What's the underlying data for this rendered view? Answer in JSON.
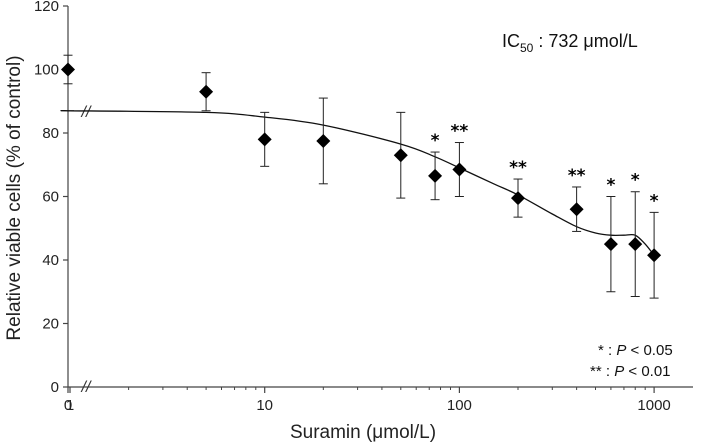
{
  "chart_data": {
    "type": "scatter",
    "title": "",
    "xlabel": "Suramin (μmol/L)",
    "ylabel": "Relative viable cells (% of control)",
    "x_scale": "log with broken axis at 0",
    "ylim": [
      0,
      120
    ],
    "xlim_log": [
      1,
      2000
    ],
    "y_ticks": [
      "0",
      "20",
      "40",
      "60",
      "80",
      "100",
      "120"
    ],
    "x_ticks": [
      "0",
      "1",
      "10",
      "100",
      "1000"
    ],
    "x_tick_values": [
      0,
      1,
      10,
      100,
      1000
    ],
    "series": [
      {
        "name": "Relative viable cells",
        "points": [
          {
            "x": 0,
            "y": 100,
            "err": 4.5,
            "sig": ""
          },
          {
            "x": 5,
            "y": 93,
            "err": 6,
            "sig": ""
          },
          {
            "x": 10,
            "y": 78,
            "err": 8.5,
            "sig": ""
          },
          {
            "x": 20,
            "y": 77.5,
            "err": 13.5,
            "sig": ""
          },
          {
            "x": 50,
            "y": 73,
            "err": 13.5,
            "sig": ""
          },
          {
            "x": 75,
            "y": 66.5,
            "err": 7.5,
            "sig": "*"
          },
          {
            "x": 100,
            "y": 68.5,
            "err": 8.5,
            "sig": "**"
          },
          {
            "x": 200,
            "y": 59.5,
            "err": 6,
            "sig": "**"
          },
          {
            "x": 400,
            "y": 56,
            "err": 7,
            "sig": "**"
          },
          {
            "x": 600,
            "y": 45,
            "err": 15,
            "sig": "*"
          },
          {
            "x": 800,
            "y": 45,
            "err": 16.5,
            "sig": "*"
          },
          {
            "x": 1000,
            "y": 41.5,
            "err": 13.5,
            "sig": "*"
          }
        ]
      }
    ],
    "fit_curve": [
      [
        1,
        87
      ],
      [
        5,
        86.5
      ],
      [
        10,
        85
      ],
      [
        20,
        82.5
      ],
      [
        50,
        76.5
      ],
      [
        75,
        72.5
      ],
      [
        100,
        69
      ],
      [
        150,
        64
      ],
      [
        200,
        60.5
      ],
      [
        300,
        54.5
      ],
      [
        400,
        50.5
      ],
      [
        500,
        48.5
      ],
      [
        600,
        47.8
      ],
      [
        700,
        47.8
      ],
      [
        800,
        47.8
      ],
      [
        900,
        45
      ],
      [
        1000,
        41.5
      ]
    ],
    "fit_start_y": 87,
    "annotations": {
      "ic50_prefix": "IC",
      "ic50_sub": "50",
      "ic50_rest": " : 732 μmol/L"
    },
    "legend": [
      {
        "mark": "*",
        "sep": " : ",
        "p": "P",
        "text": " < 0.05"
      },
      {
        "mark": "**",
        "sep": " : ",
        "p": "P",
        "text": " < 0.01"
      }
    ],
    "break_mark": "//"
  }
}
